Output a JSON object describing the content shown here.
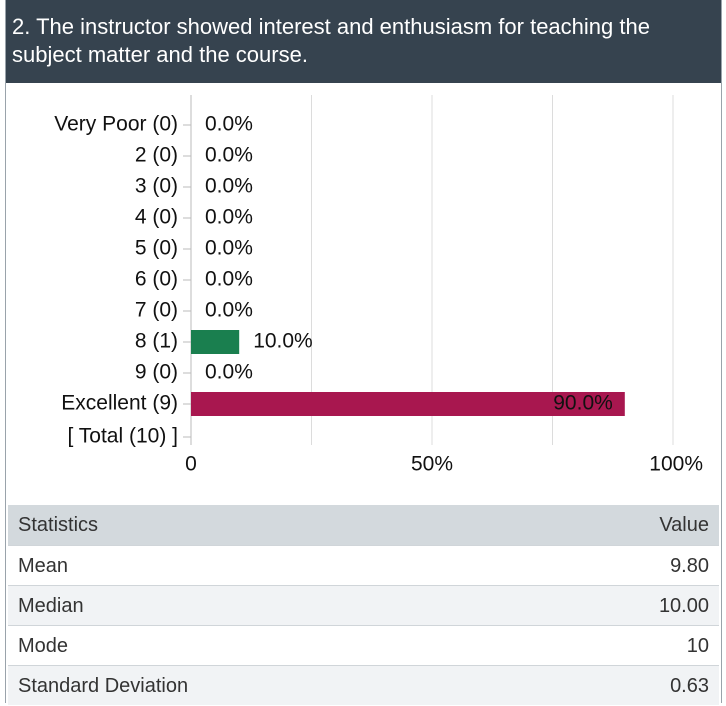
{
  "header": {
    "title": "2. The instructor showed interest and enthusiasm for teaching the subject matter and the course."
  },
  "chart_data": {
    "type": "bar",
    "orientation": "horizontal",
    "categories": [
      "Very Poor (0)",
      "2 (0)",
      "3 (0)",
      "4 (0)",
      "5 (0)",
      "6 (0)",
      "7 (0)",
      "8 (1)",
      "9 (0)",
      "Excellent (9)"
    ],
    "total_label": "[ Total (10) ]",
    "values": [
      0,
      0,
      0,
      0,
      0,
      0,
      0,
      10,
      0,
      90
    ],
    "value_labels": [
      "0.0%",
      "0.0%",
      "0.0%",
      "0.0%",
      "0.0%",
      "0.0%",
      "0.0%",
      "10.0%",
      "0.0%",
      "90.0%"
    ],
    "colors": [
      "#1a7f4f",
      "#1a7f4f",
      "#1a7f4f",
      "#1a7f4f",
      "#1a7f4f",
      "#1a7f4f",
      "#1a7f4f",
      "#1a7f4f",
      "#1a7f4f",
      "#a8174f"
    ],
    "xlim": [
      0,
      100
    ],
    "xticks": [
      0,
      {
        "value": 50,
        "label": "50%"
      },
      {
        "value": 100,
        "label": "100%"
      }
    ],
    "xgrid": [
      0,
      25,
      50,
      75,
      100
    ],
    "grid": true
  },
  "table": {
    "header": [
      "Statistics",
      "Value"
    ],
    "rows": [
      [
        "Mean",
        "9.80"
      ],
      [
        "Median",
        "10.00"
      ],
      [
        "Mode",
        "10"
      ],
      [
        "Standard Deviation",
        "0.63"
      ]
    ]
  }
}
